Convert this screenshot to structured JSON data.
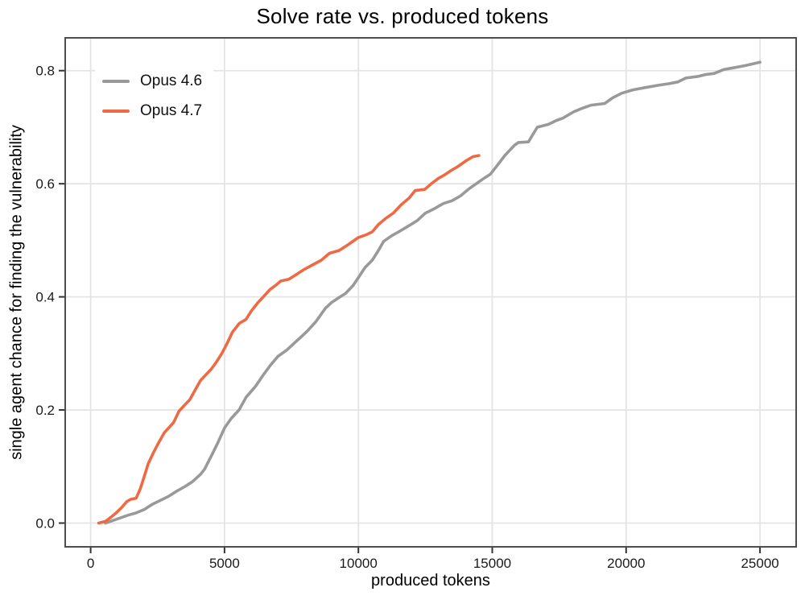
{
  "colors": {
    "background": "#FFFFFF",
    "grid": "#E4E4E4",
    "panel_border": "#4D4D4D",
    "tick": "#333333",
    "text": "#1A1A1A",
    "series_gray": "#999999",
    "series_orange": "#ED6A45"
  },
  "chart_data": {
    "type": "line",
    "title": "Solve rate vs. produced tokens",
    "xlabel": "produced tokens",
    "ylabel": "single agent chance for finding the vulnerability",
    "grid": true,
    "legend_position": "top-left-inside",
    "xlim": [
      -950,
      26350
    ],
    "ylim": [
      -0.042,
      0.858
    ],
    "x_tick_values": [
      0,
      5000,
      10000,
      15000,
      20000,
      25000
    ],
    "x_tick_labels": [
      "0",
      "5000",
      "10000",
      "15000",
      "20000",
      "25000"
    ],
    "y_tick_values": [
      0.0,
      0.2,
      0.4,
      0.6,
      0.8
    ],
    "y_tick_labels": [
      "0.0",
      "0.2",
      "0.4",
      "0.6",
      "0.8"
    ],
    "series": [
      {
        "name": "Opus 4.6",
        "color": "#999999",
        "points": [
          [
            550,
            0.0
          ],
          [
            800,
            0.004
          ],
          [
            1100,
            0.009
          ],
          [
            1400,
            0.014
          ],
          [
            1700,
            0.018
          ],
          [
            2000,
            0.024
          ],
          [
            2300,
            0.033
          ],
          [
            2600,
            0.04
          ],
          [
            2900,
            0.047
          ],
          [
            3200,
            0.056
          ],
          [
            3500,
            0.064
          ],
          [
            3800,
            0.073
          ],
          [
            4100,
            0.086
          ],
          [
            4250,
            0.095
          ],
          [
            4500,
            0.118
          ],
          [
            4750,
            0.142
          ],
          [
            5000,
            0.168
          ],
          [
            5250,
            0.185
          ],
          [
            5540,
            0.2
          ],
          [
            5800,
            0.222
          ],
          [
            6160,
            0.242
          ],
          [
            6450,
            0.262
          ],
          [
            6730,
            0.28
          ],
          [
            7000,
            0.295
          ],
          [
            7330,
            0.306
          ],
          [
            7600,
            0.318
          ],
          [
            7810,
            0.327
          ],
          [
            8100,
            0.34
          ],
          [
            8410,
            0.356
          ],
          [
            8770,
            0.38
          ],
          [
            9000,
            0.39
          ],
          [
            9250,
            0.398
          ],
          [
            9520,
            0.406
          ],
          [
            9800,
            0.42
          ],
          [
            10000,
            0.434
          ],
          [
            10250,
            0.452
          ],
          [
            10520,
            0.465
          ],
          [
            10750,
            0.482
          ],
          [
            10940,
            0.498
          ],
          [
            11240,
            0.508
          ],
          [
            11500,
            0.515
          ],
          [
            11930,
            0.527
          ],
          [
            12200,
            0.535
          ],
          [
            12500,
            0.548
          ],
          [
            12800,
            0.555
          ],
          [
            13170,
            0.565
          ],
          [
            13500,
            0.57
          ],
          [
            13800,
            0.578
          ],
          [
            14100,
            0.59
          ],
          [
            14400,
            0.6
          ],
          [
            14700,
            0.61
          ],
          [
            14930,
            0.617
          ],
          [
            15230,
            0.635
          ],
          [
            15470,
            0.65
          ],
          [
            15830,
            0.668
          ],
          [
            15980,
            0.673
          ],
          [
            16350,
            0.674
          ],
          [
            16680,
            0.7
          ],
          [
            17100,
            0.705
          ],
          [
            17400,
            0.712
          ],
          [
            17640,
            0.716
          ],
          [
            18030,
            0.727
          ],
          [
            18330,
            0.733
          ],
          [
            18690,
            0.739
          ],
          [
            19200,
            0.742
          ],
          [
            19500,
            0.752
          ],
          [
            19830,
            0.76
          ],
          [
            20250,
            0.766
          ],
          [
            20700,
            0.77
          ],
          [
            21180,
            0.774
          ],
          [
            21600,
            0.777
          ],
          [
            21930,
            0.78
          ],
          [
            22230,
            0.787
          ],
          [
            22700,
            0.79
          ],
          [
            22960,
            0.793
          ],
          [
            23290,
            0.795
          ],
          [
            23650,
            0.802
          ],
          [
            24010,
            0.805
          ],
          [
            24460,
            0.809
          ],
          [
            25000,
            0.815
          ]
        ]
      },
      {
        "name": "Opus 4.7",
        "color": "#ED6A45",
        "points": [
          [
            300,
            0.0
          ],
          [
            550,
            0.003
          ],
          [
            750,
            0.01
          ],
          [
            950,
            0.018
          ],
          [
            1150,
            0.027
          ],
          [
            1350,
            0.038
          ],
          [
            1500,
            0.042
          ],
          [
            1700,
            0.044
          ],
          [
            1850,
            0.06
          ],
          [
            2000,
            0.082
          ],
          [
            2150,
            0.105
          ],
          [
            2350,
            0.125
          ],
          [
            2550,
            0.143
          ],
          [
            2750,
            0.16
          ],
          [
            2950,
            0.17
          ],
          [
            3100,
            0.178
          ],
          [
            3300,
            0.198
          ],
          [
            3500,
            0.208
          ],
          [
            3700,
            0.218
          ],
          [
            3900,
            0.235
          ],
          [
            4100,
            0.252
          ],
          [
            4300,
            0.262
          ],
          [
            4500,
            0.272
          ],
          [
            4700,
            0.285
          ],
          [
            4900,
            0.3
          ],
          [
            5100,
            0.318
          ],
          [
            5300,
            0.338
          ],
          [
            5550,
            0.353
          ],
          [
            5800,
            0.36
          ],
          [
            6000,
            0.375
          ],
          [
            6250,
            0.39
          ],
          [
            6450,
            0.4
          ],
          [
            6700,
            0.413
          ],
          [
            6900,
            0.42
          ],
          [
            7100,
            0.428
          ],
          [
            7400,
            0.431
          ],
          [
            7700,
            0.44
          ],
          [
            7960,
            0.448
          ],
          [
            8230,
            0.455
          ],
          [
            8620,
            0.465
          ],
          [
            8920,
            0.477
          ],
          [
            9280,
            0.482
          ],
          [
            9610,
            0.492
          ],
          [
            10000,
            0.505
          ],
          [
            10300,
            0.51
          ],
          [
            10520,
            0.515
          ],
          [
            10750,
            0.528
          ],
          [
            11000,
            0.538
          ],
          [
            11300,
            0.548
          ],
          [
            11600,
            0.563
          ],
          [
            11900,
            0.575
          ],
          [
            12120,
            0.588
          ],
          [
            12480,
            0.59
          ],
          [
            12720,
            0.6
          ],
          [
            13000,
            0.61
          ],
          [
            13200,
            0.615
          ],
          [
            13450,
            0.623
          ],
          [
            13700,
            0.63
          ],
          [
            14000,
            0.64
          ],
          [
            14280,
            0.648
          ],
          [
            14500,
            0.65
          ]
        ]
      }
    ]
  }
}
